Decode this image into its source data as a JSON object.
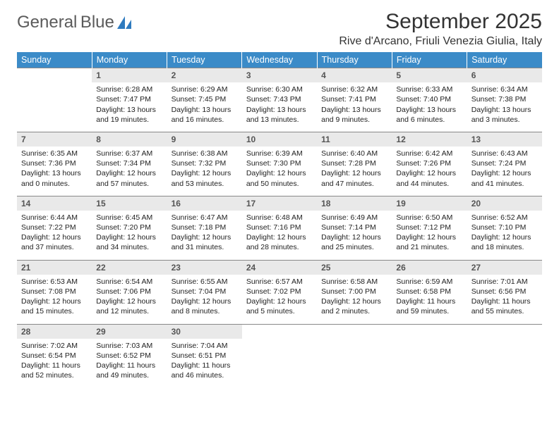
{
  "brand": {
    "line1": "General",
    "line2": "Blue"
  },
  "title": "September 2025",
  "location": "Rive d'Arcano, Friuli Venezia Giulia, Italy",
  "theme": {
    "header_bg": "#3b8bc8",
    "header_text": "#ffffff",
    "daynum_bg": "#e9e9e9",
    "daynum_text": "#555555",
    "body_text": "#222222",
    "rule_color": "#888888",
    "brand_gray": "#5b5b5b",
    "brand_blue": "#2f7bbf",
    "background": "#ffffff",
    "title_fontsize_pt": 22,
    "location_fontsize_pt": 12,
    "cell_fontsize_pt": 8,
    "header_fontsize_pt": 9.5
  },
  "dayNames": [
    "Sunday",
    "Monday",
    "Tuesday",
    "Wednesday",
    "Thursday",
    "Friday",
    "Saturday"
  ],
  "weeks": [
    [
      null,
      {
        "n": "1",
        "sr": "6:28 AM",
        "ss": "7:47 PM",
        "dl": "13 hours and 19 minutes."
      },
      {
        "n": "2",
        "sr": "6:29 AM",
        "ss": "7:45 PM",
        "dl": "13 hours and 16 minutes."
      },
      {
        "n": "3",
        "sr": "6:30 AM",
        "ss": "7:43 PM",
        "dl": "13 hours and 13 minutes."
      },
      {
        "n": "4",
        "sr": "6:32 AM",
        "ss": "7:41 PM",
        "dl": "13 hours and 9 minutes."
      },
      {
        "n": "5",
        "sr": "6:33 AM",
        "ss": "7:40 PM",
        "dl": "13 hours and 6 minutes."
      },
      {
        "n": "6",
        "sr": "6:34 AM",
        "ss": "7:38 PM",
        "dl": "13 hours and 3 minutes."
      }
    ],
    [
      {
        "n": "7",
        "sr": "6:35 AM",
        "ss": "7:36 PM",
        "dl": "13 hours and 0 minutes."
      },
      {
        "n": "8",
        "sr": "6:37 AM",
        "ss": "7:34 PM",
        "dl": "12 hours and 57 minutes."
      },
      {
        "n": "9",
        "sr": "6:38 AM",
        "ss": "7:32 PM",
        "dl": "12 hours and 53 minutes."
      },
      {
        "n": "10",
        "sr": "6:39 AM",
        "ss": "7:30 PM",
        "dl": "12 hours and 50 minutes."
      },
      {
        "n": "11",
        "sr": "6:40 AM",
        "ss": "7:28 PM",
        "dl": "12 hours and 47 minutes."
      },
      {
        "n": "12",
        "sr": "6:42 AM",
        "ss": "7:26 PM",
        "dl": "12 hours and 44 minutes."
      },
      {
        "n": "13",
        "sr": "6:43 AM",
        "ss": "7:24 PM",
        "dl": "12 hours and 41 minutes."
      }
    ],
    [
      {
        "n": "14",
        "sr": "6:44 AM",
        "ss": "7:22 PM",
        "dl": "12 hours and 37 minutes."
      },
      {
        "n": "15",
        "sr": "6:45 AM",
        "ss": "7:20 PM",
        "dl": "12 hours and 34 minutes."
      },
      {
        "n": "16",
        "sr": "6:47 AM",
        "ss": "7:18 PM",
        "dl": "12 hours and 31 minutes."
      },
      {
        "n": "17",
        "sr": "6:48 AM",
        "ss": "7:16 PM",
        "dl": "12 hours and 28 minutes."
      },
      {
        "n": "18",
        "sr": "6:49 AM",
        "ss": "7:14 PM",
        "dl": "12 hours and 25 minutes."
      },
      {
        "n": "19",
        "sr": "6:50 AM",
        "ss": "7:12 PM",
        "dl": "12 hours and 21 minutes."
      },
      {
        "n": "20",
        "sr": "6:52 AM",
        "ss": "7:10 PM",
        "dl": "12 hours and 18 minutes."
      }
    ],
    [
      {
        "n": "21",
        "sr": "6:53 AM",
        "ss": "7:08 PM",
        "dl": "12 hours and 15 minutes."
      },
      {
        "n": "22",
        "sr": "6:54 AM",
        "ss": "7:06 PM",
        "dl": "12 hours and 12 minutes."
      },
      {
        "n": "23",
        "sr": "6:55 AM",
        "ss": "7:04 PM",
        "dl": "12 hours and 8 minutes."
      },
      {
        "n": "24",
        "sr": "6:57 AM",
        "ss": "7:02 PM",
        "dl": "12 hours and 5 minutes."
      },
      {
        "n": "25",
        "sr": "6:58 AM",
        "ss": "7:00 PM",
        "dl": "12 hours and 2 minutes."
      },
      {
        "n": "26",
        "sr": "6:59 AM",
        "ss": "6:58 PM",
        "dl": "11 hours and 59 minutes."
      },
      {
        "n": "27",
        "sr": "7:01 AM",
        "ss": "6:56 PM",
        "dl": "11 hours and 55 minutes."
      }
    ],
    [
      {
        "n": "28",
        "sr": "7:02 AM",
        "ss": "6:54 PM",
        "dl": "11 hours and 52 minutes."
      },
      {
        "n": "29",
        "sr": "7:03 AM",
        "ss": "6:52 PM",
        "dl": "11 hours and 49 minutes."
      },
      {
        "n": "30",
        "sr": "7:04 AM",
        "ss": "6:51 PM",
        "dl": "11 hours and 46 minutes."
      },
      null,
      null,
      null,
      null
    ]
  ],
  "labels": {
    "sunrise": "Sunrise:",
    "sunset": "Sunset:",
    "daylight": "Daylight:"
  }
}
